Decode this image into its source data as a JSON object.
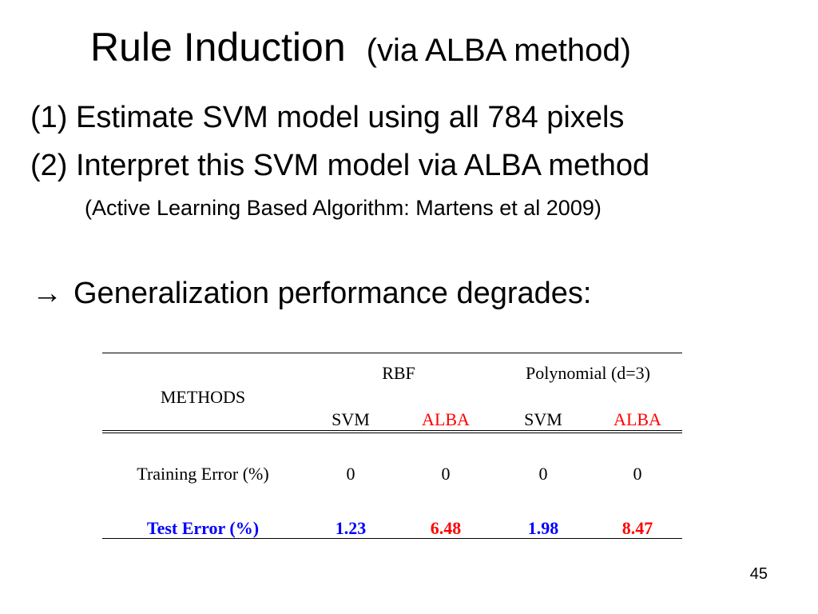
{
  "slide": {
    "title": "Rule Induction",
    "subtitle": "(via ALBA method)",
    "line1": "(1) Estimate SVM model using all 784 pixels",
    "line2": "(2) Interpret this SVM model via ALBA method",
    "line3": "(Active Learning Based Algorithm: Martens et al 2009)",
    "arrow_icon": "right-arrow-icon",
    "arrow_glyph": "→",
    "line4": "Generalization performance degrades:",
    "page_number": "45"
  },
  "table": {
    "methods_header": "METHODS",
    "groups": [
      "RBF",
      "Polynomial (d=3)"
    ],
    "subheaders": [
      "SVM",
      "ALBA",
      "SVM",
      "ALBA"
    ],
    "rows": [
      {
        "label": "Training Error (%)",
        "values": [
          "0",
          "0",
          "0",
          "0"
        ]
      },
      {
        "label": "Test Error (%)",
        "values": [
          "1.23",
          "6.48",
          "1.98",
          "8.47"
        ]
      }
    ]
  },
  "colors": {
    "alba": "#ff0000",
    "test_row": "#0000ff",
    "text": "#000000"
  }
}
